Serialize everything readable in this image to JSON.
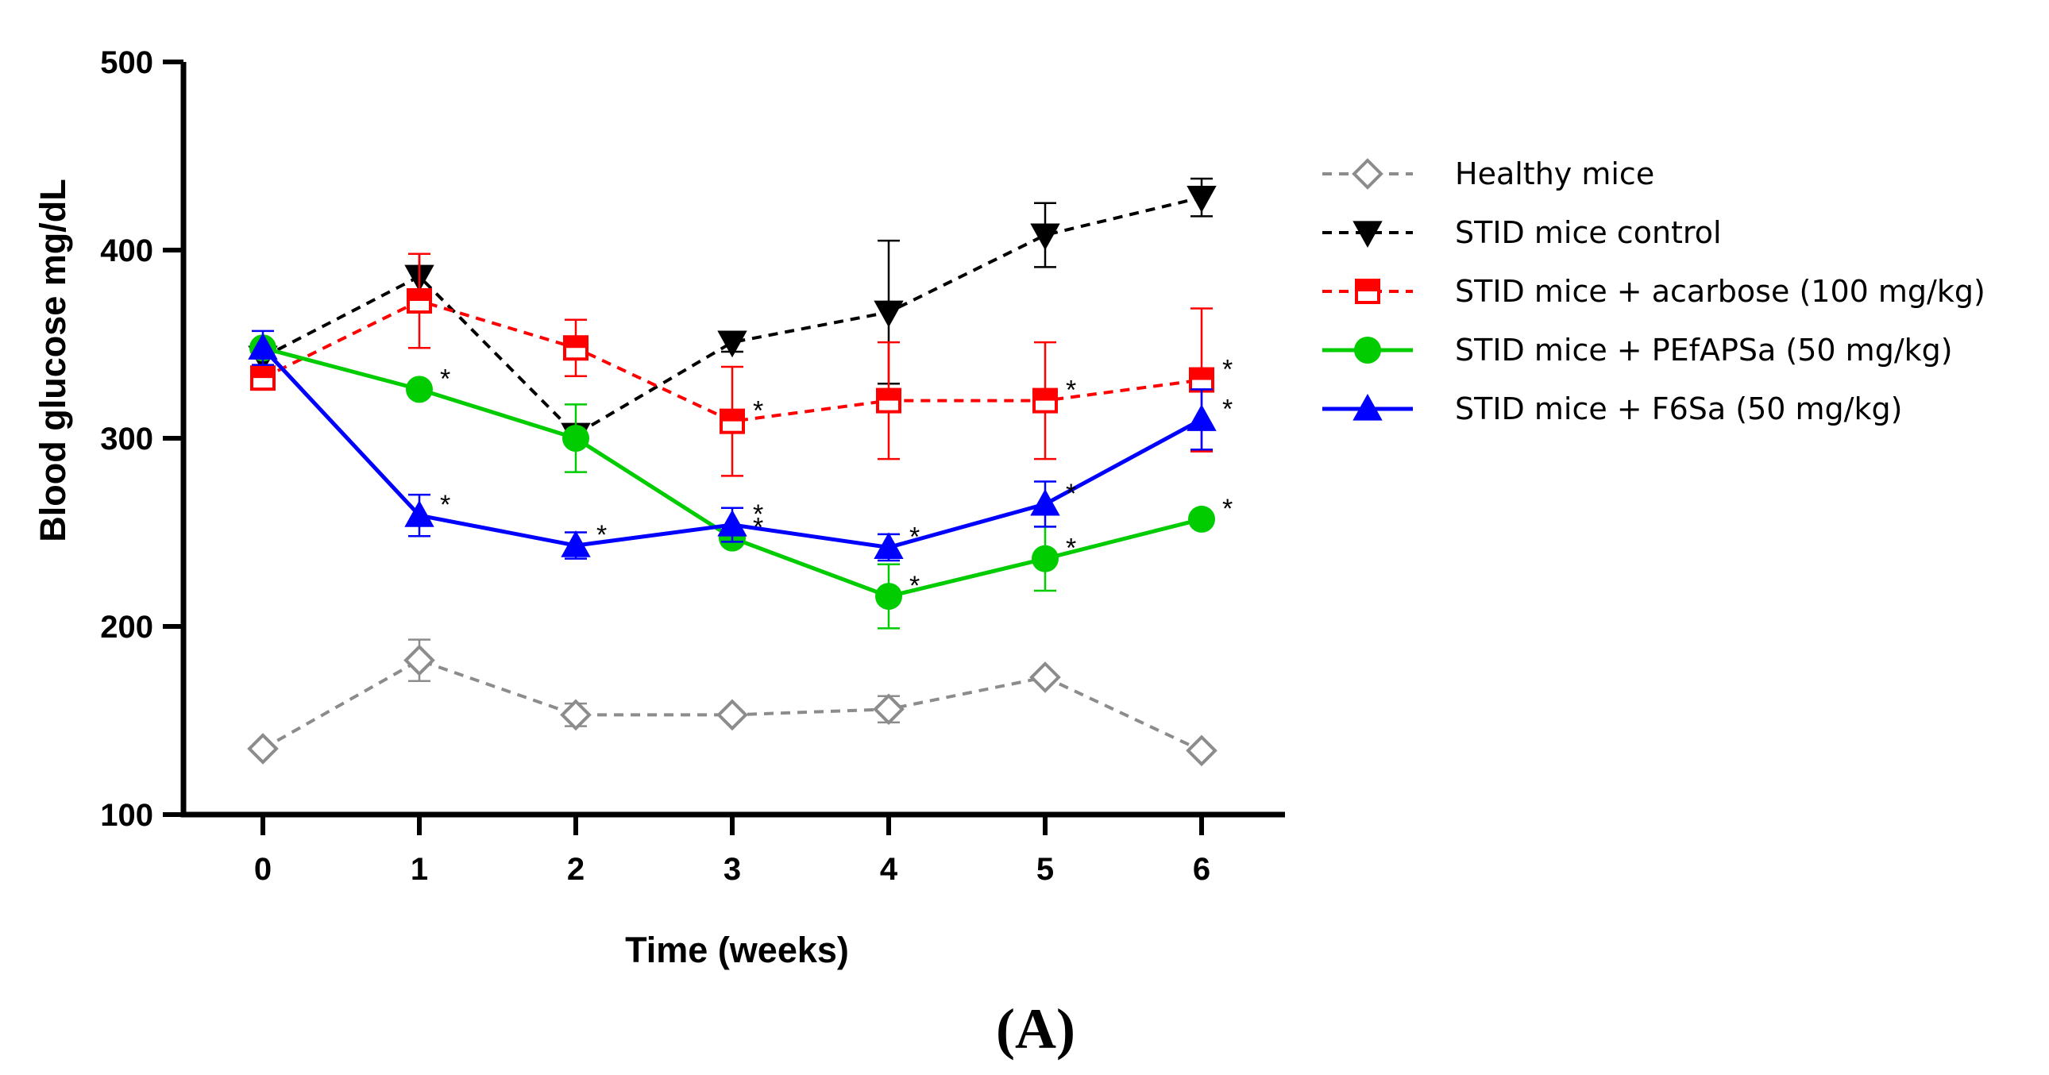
{
  "chart_data": {
    "type": "line",
    "title": "",
    "xlabel": "Time (weeks)",
    "ylabel": "Blood glucose mg/dL",
    "panel_label": "(A)",
    "x": [
      0,
      1,
      2,
      3,
      4,
      5,
      6
    ],
    "x_tick_labels": [
      "0",
      "1",
      "2",
      "3",
      "4",
      "5",
      "6"
    ],
    "ylim": [
      100,
      500
    ],
    "y_ticks": [
      100,
      200,
      300,
      400,
      500
    ],
    "y_tick_labels": [
      "100",
      "200",
      "300",
      "400",
      "500"
    ],
    "grid": false,
    "legend_position": "right",
    "significance_marker": "*",
    "series": [
      {
        "name": "Healthy mice",
        "color": "#8c8c8c",
        "line": "dashed",
        "marker": "diamond-open",
        "values": [
          135,
          182,
          153,
          153,
          156,
          173,
          134
        ],
        "errors": [
          0,
          11,
          6,
          0,
          7,
          0,
          0
        ],
        "significant": [
          false,
          false,
          false,
          false,
          false,
          false,
          false
        ]
      },
      {
        "name": "STID mice control",
        "color": "#000000",
        "line": "dashed",
        "marker": "triangle-down",
        "values": [
          343,
          386,
          302,
          351,
          367,
          408,
          428
        ],
        "errors": [
          0,
          12,
          0,
          5,
          38,
          17,
          10
        ],
        "significant": [
          false,
          false,
          false,
          false,
          false,
          false,
          false
        ]
      },
      {
        "name": "STID mice + acarbose (100 mg/kg)",
        "color": "#ff0000",
        "line": "dashed",
        "marker": "square-half",
        "values": [
          332,
          373,
          348,
          309,
          320,
          320,
          331
        ],
        "errors": [
          0,
          25,
          15,
          29,
          31,
          31,
          38
        ],
        "significant": [
          false,
          false,
          false,
          true,
          false,
          true,
          true
        ]
      },
      {
        "name": "STID mice + PEfAPSa (50 mg/kg)",
        "color": "#00cc00",
        "line": "solid",
        "marker": "circle",
        "values": [
          348,
          326,
          300,
          247,
          216,
          236,
          257
        ],
        "errors": [
          0,
          0,
          18,
          0,
          17,
          17,
          0
        ],
        "significant": [
          false,
          true,
          false,
          true,
          true,
          true,
          true
        ]
      },
      {
        "name": "STID mice + F6Sa (50 mg/kg)",
        "color": "#0000ff",
        "line": "solid",
        "marker": "triangle-up",
        "values": [
          348,
          259,
          243,
          254,
          242,
          265,
          310
        ],
        "errors": [
          9,
          11,
          7,
          9,
          7,
          12,
          16
        ],
        "significant": [
          false,
          true,
          true,
          true,
          true,
          true,
          true
        ]
      }
    ]
  }
}
